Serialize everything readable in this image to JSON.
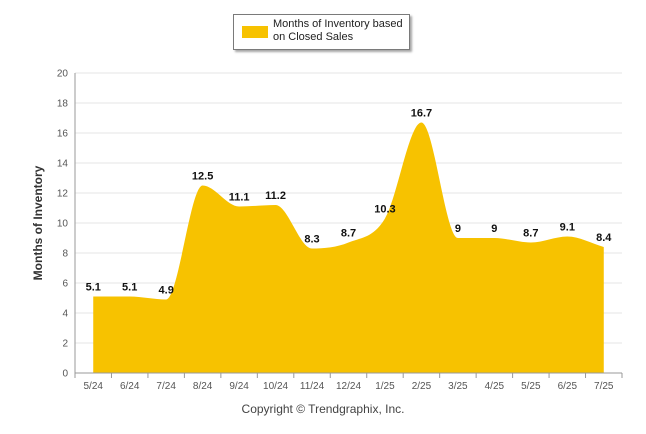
{
  "colors": {
    "area": "#f7c200",
    "grid": "#e6e6e6",
    "axis": "#999999",
    "tick_text": "#555555",
    "label_text": "#111111"
  },
  "legend": {
    "label": "Months of Inventory based on Closed Sales",
    "color": "#f7c200"
  },
  "copyright": "Copyright © Trendgraphix, Inc.",
  "chart_data": {
    "type": "area",
    "title": "",
    "xlabel": "",
    "ylabel": "Months of Inventory",
    "ylim": [
      0,
      20
    ],
    "yticks": [
      0,
      2,
      4,
      6,
      8,
      10,
      12,
      14,
      16,
      18,
      20
    ],
    "grid": true,
    "legend_position": "top-center",
    "categories": [
      "5/24",
      "6/24",
      "7/24",
      "8/24",
      "9/24",
      "10/24",
      "11/24",
      "12/24",
      "1/25",
      "2/25",
      "3/25",
      "4/25",
      "5/25",
      "6/25",
      "7/25"
    ],
    "series": [
      {
        "name": "Months of Inventory based on Closed Sales",
        "values": [
          5.1,
          5.1,
          4.9,
          12.5,
          11.1,
          11.2,
          8.3,
          8.7,
          10.3,
          16.7,
          9,
          9,
          8.7,
          9.1,
          8.4
        ],
        "labels": [
          "5.1",
          "5.1",
          "4.9",
          "12.5",
          "11.1",
          "11.2",
          "8.3",
          "8.7",
          "10.3",
          "16.7",
          "9",
          "9",
          "8.7",
          "9.1",
          "8.4"
        ]
      }
    ]
  }
}
